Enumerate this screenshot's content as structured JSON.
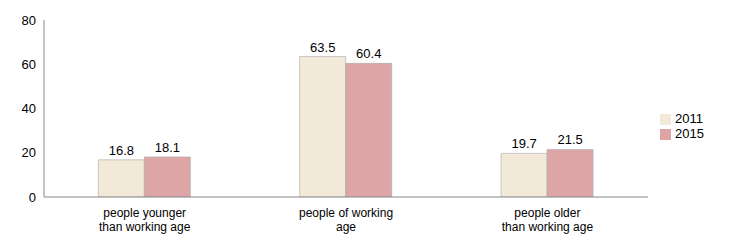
{
  "chart_data": {
    "type": "bar",
    "categories": [
      "people younger than working age",
      "people of working age",
      "people older than working age"
    ],
    "series": [
      {
        "name": "2011",
        "color": "#f3e9d8",
        "values": [
          16.8,
          63.5,
          19.7
        ]
      },
      {
        "name": "2015",
        "color": "#dea5a7",
        "values": [
          18.1,
          60.4,
          21.5
        ]
      }
    ],
    "ylim": [
      0,
      80
    ],
    "yticks": [
      0,
      20,
      40,
      60,
      80
    ],
    "grid": false,
    "legend": "right",
    "data_labels": true
  }
}
